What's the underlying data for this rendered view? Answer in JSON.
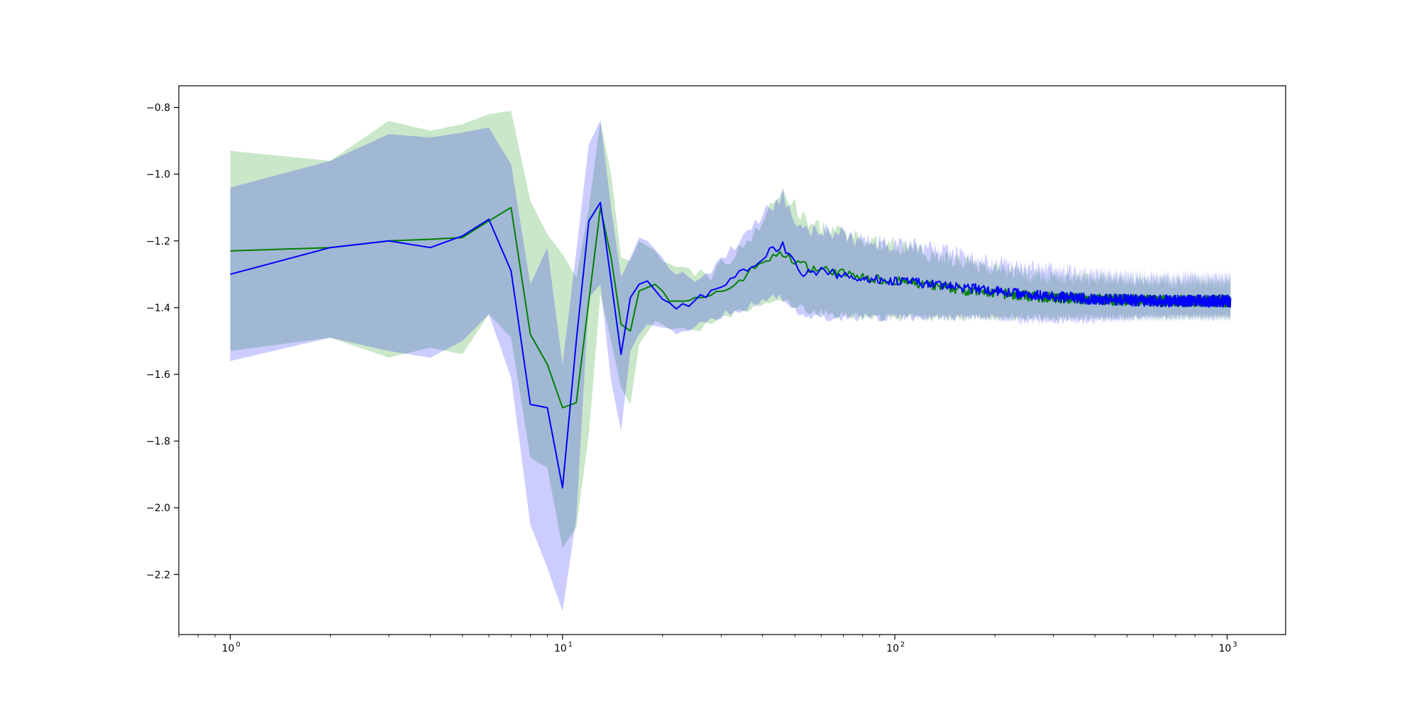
{
  "chart_data": {
    "type": "line",
    "title": "",
    "xlabel": "",
    "ylabel": "",
    "x_scale": "log",
    "xlim": [
      0.7,
      1500
    ],
    "ylim": [
      -2.38,
      -0.735
    ],
    "x_ticks": [
      {
        "value": 1,
        "base": "10",
        "exp": "0"
      },
      {
        "value": 10,
        "base": "10",
        "exp": "1"
      },
      {
        "value": 100,
        "base": "10",
        "exp": "2"
      },
      {
        "value": 1000,
        "base": "10",
        "exp": "3"
      }
    ],
    "y_ticks": [
      {
        "value": -0.8,
        "label": "−0.8"
      },
      {
        "value": -1.0,
        "label": "−1.0"
      },
      {
        "value": -1.2,
        "label": "−1.2"
      },
      {
        "value": -1.4,
        "label": "−1.4"
      },
      {
        "value": -1.6,
        "label": "−1.6"
      },
      {
        "value": -1.8,
        "label": "−1.8"
      },
      {
        "value": -2.0,
        "label": "−2.0"
      },
      {
        "value": -2.2,
        "label": "−2.2"
      }
    ],
    "grid": false,
    "legend": "none",
    "x_max": 1024,
    "series": [
      {
        "color": "#008000",
        "band_color": "#2ca02c",
        "band_opacity": 0.25,
        "points": [
          [
            1,
            -1.23,
            -0.93,
            -1.53
          ],
          [
            2,
            -1.22,
            -0.96,
            -1.49
          ],
          [
            3,
            -1.2,
            -0.84,
            -1.55
          ],
          [
            4,
            -1.195,
            -0.87,
            -1.52
          ],
          [
            5,
            -1.19,
            -0.85,
            -1.54
          ],
          [
            6,
            -1.14,
            -0.82,
            -1.42
          ],
          [
            7,
            -1.1,
            -0.81,
            -1.49
          ],
          [
            8,
            -1.48,
            -1.08,
            -1.85
          ],
          [
            9,
            -1.57,
            -1.18,
            -1.88
          ],
          [
            10,
            -1.7,
            -1.24,
            -2.12
          ],
          [
            11,
            -1.685,
            -1.31,
            -2.06
          ],
          [
            12,
            -1.38,
            -1.1,
            -1.78
          ],
          [
            13,
            -1.1,
            -0.84,
            -1.36
          ],
          [
            14,
            -1.25,
            -1.0,
            -1.5
          ],
          [
            15,
            -1.45,
            -1.25,
            -1.64
          ],
          [
            16,
            -1.47,
            -1.26,
            -1.69
          ],
          [
            17,
            -1.35,
            -1.2,
            -1.51
          ],
          [
            19,
            -1.33,
            -1.23,
            -1.44
          ],
          [
            21,
            -1.37,
            -1.29,
            -1.46
          ],
          [
            24,
            -1.38,
            -1.29,
            -1.47
          ],
          [
            28,
            -1.37,
            -1.3,
            -1.45
          ],
          [
            33,
            -1.33,
            -1.24,
            -1.42
          ],
          [
            40,
            -1.26,
            -1.14,
            -1.39
          ],
          [
            46,
            -1.24,
            -1.05,
            -1.38
          ],
          [
            55,
            -1.28,
            -1.15,
            -1.41
          ],
          [
            65,
            -1.29,
            -1.17,
            -1.42
          ],
          [
            80,
            -1.31,
            -1.2,
            -1.43
          ],
          [
            100,
            -1.32,
            -1.21,
            -1.43
          ],
          [
            130,
            -1.335,
            -1.24,
            -1.43
          ],
          [
            170,
            -1.35,
            -1.27,
            -1.43
          ],
          [
            250,
            -1.365,
            -1.3,
            -1.43
          ],
          [
            400,
            -1.375,
            -1.31,
            -1.43
          ],
          [
            650,
            -1.38,
            -1.32,
            -1.43
          ],
          [
            1024,
            -1.38,
            -1.32,
            -1.43
          ]
        ]
      },
      {
        "color": "#0000ff",
        "band_color": "#0000ff",
        "band_opacity": 0.2,
        "points": [
          [
            1,
            -1.3,
            -1.04,
            -1.56
          ],
          [
            2,
            -1.22,
            -0.96,
            -1.49
          ],
          [
            3,
            -1.2,
            -0.88,
            -1.53
          ],
          [
            4,
            -1.22,
            -0.89,
            -1.55
          ],
          [
            5,
            -1.185,
            -0.875,
            -1.5
          ],
          [
            6,
            -1.135,
            -0.86,
            -1.42
          ],
          [
            7,
            -1.29,
            -0.97,
            -1.61
          ],
          [
            8,
            -1.69,
            -1.33,
            -2.05
          ],
          [
            9,
            -1.7,
            -1.22,
            -2.18
          ],
          [
            10,
            -1.94,
            -1.57,
            -2.31
          ],
          [
            11,
            -1.5,
            -1.23,
            -2.03
          ],
          [
            12,
            -1.14,
            -0.91,
            -1.37
          ],
          [
            13,
            -1.085,
            -0.84,
            -1.33
          ],
          [
            14,
            -1.32,
            -1.1,
            -1.62
          ],
          [
            15,
            -1.54,
            -1.31,
            -1.77
          ],
          [
            16,
            -1.37,
            -1.25,
            -1.53
          ],
          [
            17,
            -1.33,
            -1.19,
            -1.48
          ],
          [
            18,
            -1.32,
            -1.2,
            -1.45
          ],
          [
            20,
            -1.375,
            -1.25,
            -1.46
          ],
          [
            22,
            -1.4,
            -1.29,
            -1.48
          ],
          [
            25,
            -1.38,
            -1.31,
            -1.46
          ],
          [
            29,
            -1.35,
            -1.28,
            -1.43
          ],
          [
            35,
            -1.29,
            -1.18,
            -1.4
          ],
          [
            42,
            -1.23,
            -1.1,
            -1.37
          ],
          [
            46,
            -1.21,
            -1.06,
            -1.37
          ],
          [
            52,
            -1.3,
            -1.17,
            -1.43
          ],
          [
            60,
            -1.29,
            -1.16,
            -1.43
          ],
          [
            75,
            -1.31,
            -1.19,
            -1.43
          ],
          [
            100,
            -1.32,
            -1.21,
            -1.43
          ],
          [
            130,
            -1.33,
            -1.22,
            -1.43
          ],
          [
            180,
            -1.345,
            -1.26,
            -1.43
          ],
          [
            250,
            -1.36,
            -1.28,
            -1.44
          ],
          [
            400,
            -1.375,
            -1.3,
            -1.44
          ],
          [
            650,
            -1.38,
            -1.31,
            -1.43
          ],
          [
            1024,
            -1.38,
            -1.31,
            -1.43
          ]
        ]
      }
    ]
  }
}
